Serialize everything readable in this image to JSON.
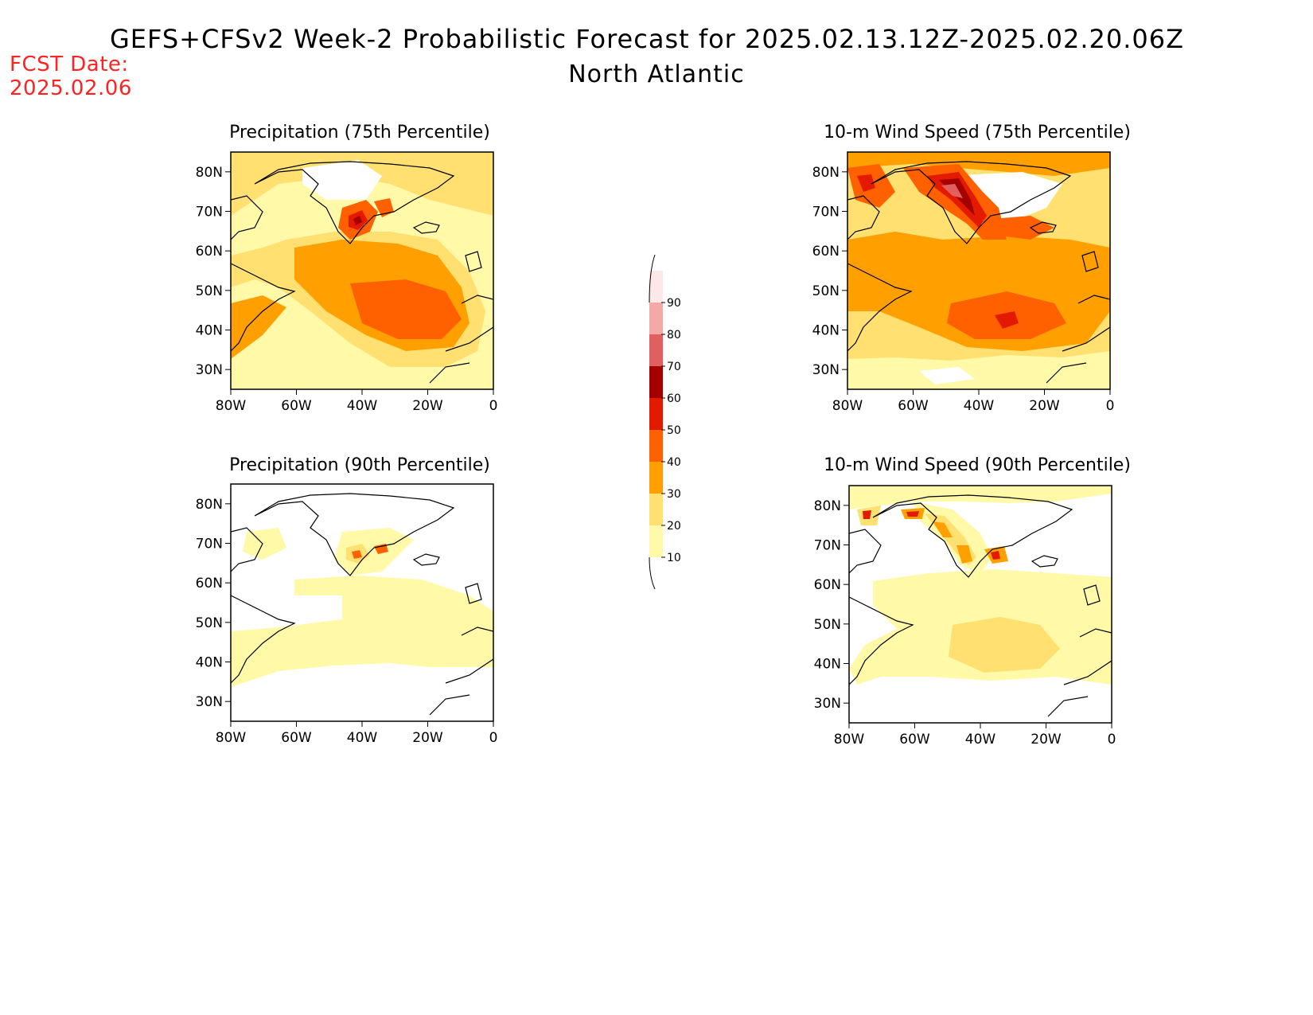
{
  "header": {
    "title": "GEFS+CFSv2 Week-2 Probabilistic Forecast for 2025.02.13.12Z-2025.02.20.06Z",
    "subtitle": "North Atlantic",
    "fcst_label": "FCST Date:",
    "fcst_value": "2025.02.06"
  },
  "panels": [
    {
      "title": "Precipitation (75th Percentile)"
    },
    {
      "title": "10-m Wind Speed (75th Percentile)"
    },
    {
      "title": "Precipitation (90th Percentile)"
    },
    {
      "title": "10-m Wind Speed (90th Percentile)"
    }
  ],
  "axes": {
    "lat_labels": [
      "80N",
      "70N",
      "60N",
      "50N",
      "40N",
      "30N"
    ],
    "lon_labels": [
      "80W",
      "60W",
      "40W",
      "20W",
      "0"
    ]
  },
  "colorbar": {
    "levels": [
      "10",
      "20",
      "30",
      "40",
      "50",
      "60",
      "70",
      "80",
      "90"
    ],
    "colors": [
      "#fff9a8",
      "#ffe070",
      "#ffa000",
      "#ff6000",
      "#e41a00",
      "#a50000",
      "#e06060",
      "#f4a8a8",
      "#fde8e8"
    ]
  }
}
